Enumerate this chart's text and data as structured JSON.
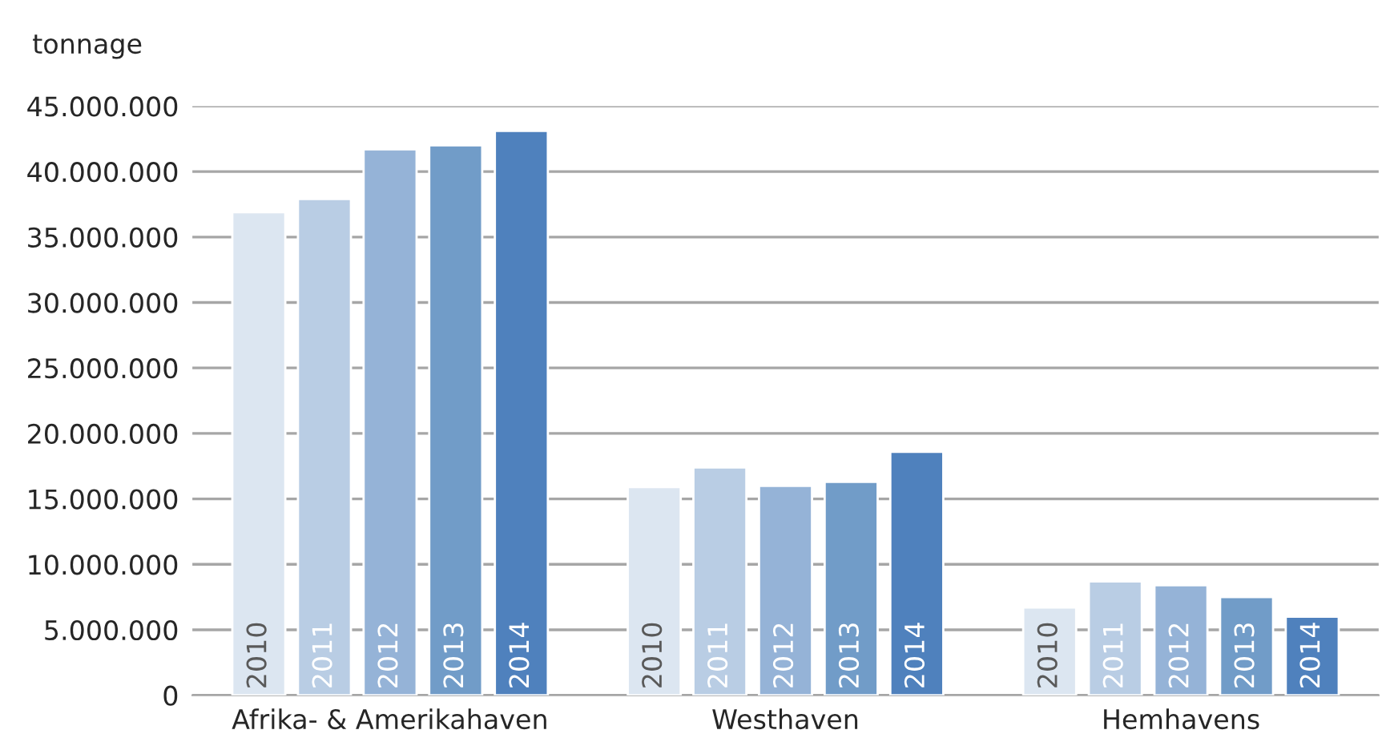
{
  "chart_data": {
    "type": "bar",
    "ylabel": "tonnage",
    "categories": [
      "Afrika- & Amerikahaven",
      "Westhaven",
      "Hemhavens"
    ],
    "series": [
      {
        "name": "2010",
        "color": "#dce6f1",
        "values": [
          36900000,
          15900000,
          6700000
        ]
      },
      {
        "name": "2011",
        "color": "#b9cde4",
        "values": [
          37900000,
          17400000,
          8700000
        ]
      },
      {
        "name": "2012",
        "color": "#95b3d7",
        "values": [
          41700000,
          16000000,
          8400000
        ]
      },
      {
        "name": "2013",
        "color": "#719cc8",
        "values": [
          42000000,
          16300000,
          7500000
        ]
      },
      {
        "name": "2014",
        "color": "#4f81bd",
        "values": [
          43100000,
          18600000,
          6000000
        ]
      }
    ],
    "ylim": [
      0,
      45000000
    ],
    "yticks": [
      0,
      {
        "value": 5000000,
        "label": "5.000.000"
      },
      {
        "value": 10000000,
        "label": "10.000.000"
      },
      {
        "value": 15000000,
        "label": "15.000.000"
      },
      {
        "value": 20000000,
        "label": "20.000.000"
      },
      {
        "value": 25000000,
        "label": "25.000.000"
      },
      {
        "value": 30000000,
        "label": "30.000.000"
      },
      {
        "value": 35000000,
        "label": "35.000.000"
      },
      {
        "value": 40000000,
        "label": "40.000.000"
      },
      {
        "value": 45000000,
        "label": "45.000.000"
      }
    ],
    "grid": "y",
    "legend": false
  }
}
